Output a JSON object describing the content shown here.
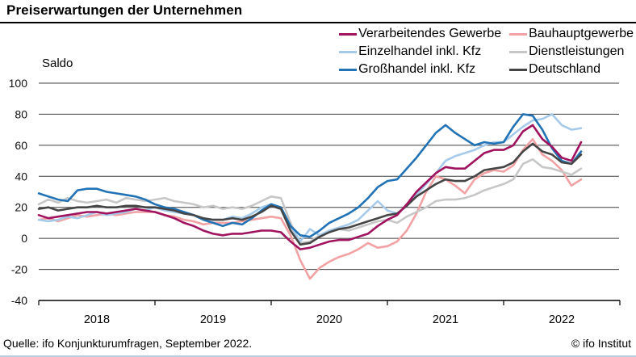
{
  "header": {
    "title": "Preiserwartungen der Unternehmen"
  },
  "footer": {
    "source": "Quelle: ifo Konjunkturumfragen, September 2022.",
    "copyright": "© ifo Institut"
  },
  "chart_data": {
    "type": "line",
    "title": "Preiserwartungen der Unternehmen",
    "ylabel": "Saldo",
    "ylim": [
      -40,
      100
    ],
    "yticks": [
      100,
      80,
      60,
      40,
      20,
      0,
      -20,
      -40
    ],
    "grid": true,
    "legend_position": "top-right",
    "x_frequency": "monthly",
    "x_start": "2018-01",
    "x_end": "2022-09",
    "x_tick_labels": [
      "2018",
      "2019",
      "2020",
      "2021",
      "2022"
    ],
    "series": [
      {
        "id": "verarbeitendes-gewerbe",
        "name": "Verarbeitendes Gewerbe",
        "color": "#A0135F",
        "z": 6,
        "values": [
          15,
          13,
          14,
          15,
          16,
          17,
          17,
          16,
          17,
          18,
          19,
          18,
          17,
          15,
          13,
          10,
          8,
          5,
          3,
          2,
          3,
          3,
          4,
          5,
          5,
          4,
          -2,
          -7,
          -6,
          -4,
          -2,
          -1,
          -1,
          1,
          3,
          8,
          12,
          15,
          22,
          30,
          36,
          42,
          46,
          45,
          45,
          50,
          55,
          57,
          57,
          60,
          69,
          73,
          64,
          59,
          52,
          50,
          62
        ]
      },
      {
        "id": "einzelhandel-inkl-kfz",
        "name": "Einzelhandel inkl. Kfz",
        "color": "#A6CBEA",
        "z": 3,
        "values": [
          12,
          11,
          12,
          14,
          13,
          15,
          17,
          15,
          16,
          17,
          19,
          18,
          20,
          18,
          17,
          16,
          15,
          13,
          12,
          12,
          14,
          13,
          16,
          20,
          22,
          20,
          8,
          -2,
          6,
          2,
          5,
          7,
          9,
          12,
          18,
          24,
          18,
          16,
          21,
          28,
          35,
          42,
          50,
          53,
          55,
          57,
          60,
          62,
          62,
          67,
          72,
          76,
          77,
          80,
          73,
          70,
          71
        ]
      },
      {
        "id": "grosshandel-inkl-kfz",
        "name": "Großhandel inkl. Kfz",
        "color": "#2173B5",
        "z": 4,
        "values": [
          29,
          27,
          25,
          24,
          31,
          32,
          32,
          30,
          29,
          28,
          27,
          25,
          22,
          20,
          19,
          17,
          15,
          12,
          10,
          8,
          10,
          9,
          13,
          18,
          22,
          20,
          8,
          2,
          1,
          5,
          10,
          13,
          16,
          20,
          26,
          33,
          37,
          38,
          45,
          52,
          60,
          68,
          73,
          68,
          64,
          60,
          62,
          61,
          62,
          72,
          80,
          79,
          70,
          58,
          50,
          48,
          56
        ]
      },
      {
        "id": "bauhauptgewerbe",
        "name": "Bauhauptgewerbe",
        "color": "#F1A2A4",
        "z": 1,
        "values": [
          12,
          13,
          11,
          13,
          15,
          14,
          15,
          16,
          15,
          16,
          17,
          17,
          17,
          15,
          14,
          12,
          11,
          9,
          10,
          10,
          10,
          11,
          12,
          13,
          14,
          13,
          2,
          -14,
          -26,
          -19,
          -15,
          -12,
          -10,
          -7,
          -3,
          -6,
          -5,
          -2,
          5,
          16,
          30,
          40,
          38,
          34,
          29,
          38,
          42,
          44,
          43,
          47,
          57,
          64,
          54,
          50,
          44,
          34,
          38
        ]
      },
      {
        "id": "dienstleistungen",
        "name": "Dienstleistungen",
        "color": "#C7C7C7",
        "z": 2,
        "values": [
          22,
          25,
          23,
          26,
          24,
          23,
          24,
          25,
          23,
          26,
          25,
          24,
          25,
          26,
          24,
          23,
          22,
          20,
          21,
          19,
          20,
          19,
          21,
          24,
          27,
          26,
          10,
          -3,
          -2,
          2,
          5,
          6,
          5,
          7,
          9,
          11,
          12,
          10,
          14,
          17,
          20,
          24,
          25,
          25,
          26,
          28,
          31,
          33,
          35,
          38,
          48,
          51,
          46,
          45,
          43,
          41,
          45
        ]
      },
      {
        "id": "deutschland",
        "name": "Deutschland",
        "color": "#454545",
        "z": 5,
        "values": [
          19,
          20,
          18,
          19,
          20,
          20,
          21,
          20,
          20,
          21,
          21,
          20,
          20,
          19,
          18,
          16,
          15,
          13,
          12,
          12,
          13,
          12,
          14,
          17,
          21,
          19,
          5,
          -4,
          -3,
          1,
          4,
          6,
          7,
          9,
          11,
          13,
          15,
          16,
          21,
          27,
          31,
          35,
          38,
          37,
          37,
          40,
          44,
          45,
          46,
          49,
          56,
          61,
          56,
          54,
          49,
          48,
          54
        ]
      }
    ]
  }
}
